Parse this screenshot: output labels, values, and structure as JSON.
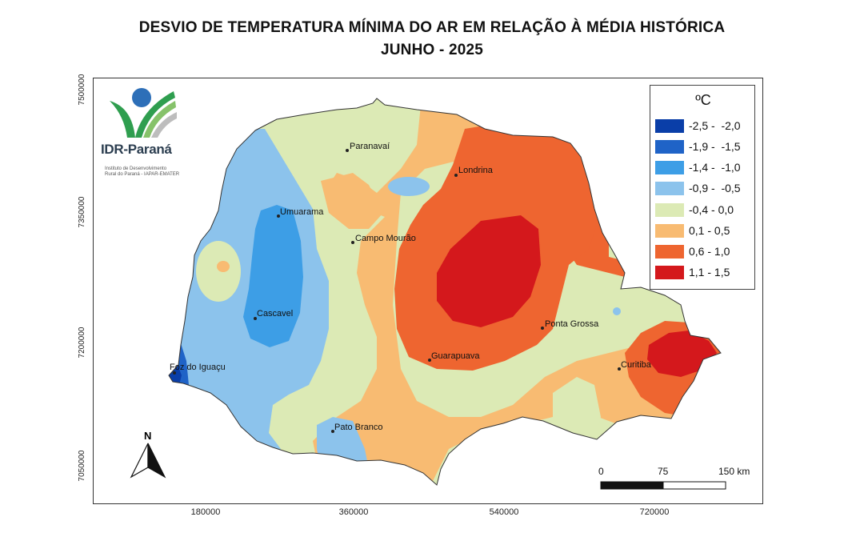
{
  "title_line1": "DESVIO DE TEMPERATURA MÍNIMA DO AR EM RELAÇÃO À MÉDIA HISTÓRICA",
  "title_line2": "JUNHO - 2025",
  "logo": {
    "name": "IDR-Paraná",
    "subtitle_line1": "Instituto de Desenvolvimento",
    "subtitle_line2": "Rural do Paraná - IAPAR-EMATER"
  },
  "axes": {
    "y_ticks": [
      "7500000",
      "7350000",
      "7200000",
      "7050000"
    ],
    "x_ticks": [
      "180000",
      "360000",
      "540000",
      "720000"
    ]
  },
  "legend": {
    "title": "ºC",
    "classes": [
      {
        "label": "-2,5 -  -2,0",
        "color": "#0a3ea8"
      },
      {
        "label": "-1,9 -  -1,5",
        "color": "#1f63c7"
      },
      {
        "label": "-1,4 -  -1,0",
        "color": "#3d9ee6"
      },
      {
        "label": "-0,9 -  -0,5",
        "color": "#8cc3ec"
      },
      {
        "label": "-0,4 - 0,0",
        "color": "#dceab5"
      },
      {
        "label": "0,1 - 0,5",
        "color": "#f8bb72"
      },
      {
        "label": "0,6 - 1,0",
        "color": "#ee6530"
      },
      {
        "label": "1,1 - 1,5",
        "color": "#d4181c"
      }
    ]
  },
  "cities": [
    {
      "name": "Paranavaí"
    },
    {
      "name": "Londrina"
    },
    {
      "name": "Umuarama"
    },
    {
      "name": "Campo Mourão"
    },
    {
      "name": "Cascavel"
    },
    {
      "name": "Ponta Grossa"
    },
    {
      "name": "Guarapuava"
    },
    {
      "name": "Curitiba"
    },
    {
      "name": "Foz do Iguaçu"
    },
    {
      "name": "Pato Branco"
    }
  ],
  "north_arrow_label": "N",
  "scale_bar": {
    "labels": [
      "0",
      "75",
      "150 km"
    ]
  }
}
